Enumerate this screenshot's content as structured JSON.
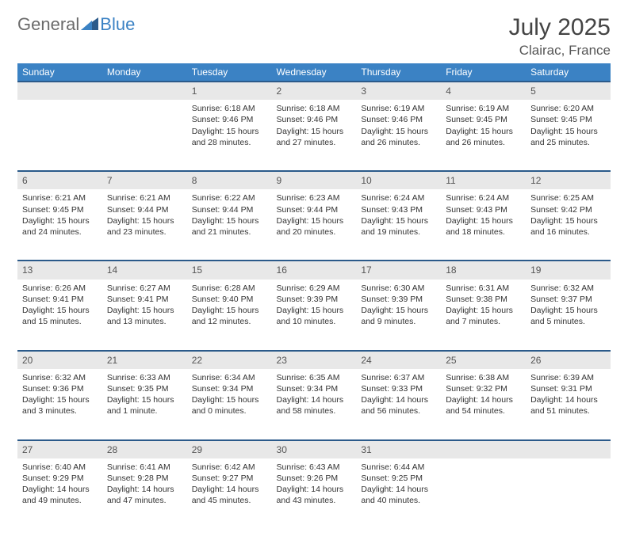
{
  "brand": {
    "general": "General",
    "blue": "Blue"
  },
  "title": "July 2025",
  "location": "Clairac, France",
  "colors": {
    "header_bg": "#3b82c4",
    "row_border": "#2b5a8a",
    "daynum_bg": "#e8e8e8",
    "text": "#333333",
    "muted": "#6b6b6b"
  },
  "weekdays": [
    "Sunday",
    "Monday",
    "Tuesday",
    "Wednesday",
    "Thursday",
    "Friday",
    "Saturday"
  ],
  "weeks": [
    [
      null,
      null,
      {
        "d": "1",
        "sr": "6:18 AM",
        "ss": "9:46 PM",
        "dl": "15 hours and 28 minutes."
      },
      {
        "d": "2",
        "sr": "6:18 AM",
        "ss": "9:46 PM",
        "dl": "15 hours and 27 minutes."
      },
      {
        "d": "3",
        "sr": "6:19 AM",
        "ss": "9:46 PM",
        "dl": "15 hours and 26 minutes."
      },
      {
        "d": "4",
        "sr": "6:19 AM",
        "ss": "9:45 PM",
        "dl": "15 hours and 26 minutes."
      },
      {
        "d": "5",
        "sr": "6:20 AM",
        "ss": "9:45 PM",
        "dl": "15 hours and 25 minutes."
      }
    ],
    [
      {
        "d": "6",
        "sr": "6:21 AM",
        "ss": "9:45 PM",
        "dl": "15 hours and 24 minutes."
      },
      {
        "d": "7",
        "sr": "6:21 AM",
        "ss": "9:44 PM",
        "dl": "15 hours and 23 minutes."
      },
      {
        "d": "8",
        "sr": "6:22 AM",
        "ss": "9:44 PM",
        "dl": "15 hours and 21 minutes."
      },
      {
        "d": "9",
        "sr": "6:23 AM",
        "ss": "9:44 PM",
        "dl": "15 hours and 20 minutes."
      },
      {
        "d": "10",
        "sr": "6:24 AM",
        "ss": "9:43 PM",
        "dl": "15 hours and 19 minutes."
      },
      {
        "d": "11",
        "sr": "6:24 AM",
        "ss": "9:43 PM",
        "dl": "15 hours and 18 minutes."
      },
      {
        "d": "12",
        "sr": "6:25 AM",
        "ss": "9:42 PM",
        "dl": "15 hours and 16 minutes."
      }
    ],
    [
      {
        "d": "13",
        "sr": "6:26 AM",
        "ss": "9:41 PM",
        "dl": "15 hours and 15 minutes."
      },
      {
        "d": "14",
        "sr": "6:27 AM",
        "ss": "9:41 PM",
        "dl": "15 hours and 13 minutes."
      },
      {
        "d": "15",
        "sr": "6:28 AM",
        "ss": "9:40 PM",
        "dl": "15 hours and 12 minutes."
      },
      {
        "d": "16",
        "sr": "6:29 AM",
        "ss": "9:39 PM",
        "dl": "15 hours and 10 minutes."
      },
      {
        "d": "17",
        "sr": "6:30 AM",
        "ss": "9:39 PM",
        "dl": "15 hours and 9 minutes."
      },
      {
        "d": "18",
        "sr": "6:31 AM",
        "ss": "9:38 PM",
        "dl": "15 hours and 7 minutes."
      },
      {
        "d": "19",
        "sr": "6:32 AM",
        "ss": "9:37 PM",
        "dl": "15 hours and 5 minutes."
      }
    ],
    [
      {
        "d": "20",
        "sr": "6:32 AM",
        "ss": "9:36 PM",
        "dl": "15 hours and 3 minutes."
      },
      {
        "d": "21",
        "sr": "6:33 AM",
        "ss": "9:35 PM",
        "dl": "15 hours and 1 minute."
      },
      {
        "d": "22",
        "sr": "6:34 AM",
        "ss": "9:34 PM",
        "dl": "15 hours and 0 minutes."
      },
      {
        "d": "23",
        "sr": "6:35 AM",
        "ss": "9:34 PM",
        "dl": "14 hours and 58 minutes."
      },
      {
        "d": "24",
        "sr": "6:37 AM",
        "ss": "9:33 PM",
        "dl": "14 hours and 56 minutes."
      },
      {
        "d": "25",
        "sr": "6:38 AM",
        "ss": "9:32 PM",
        "dl": "14 hours and 54 minutes."
      },
      {
        "d": "26",
        "sr": "6:39 AM",
        "ss": "9:31 PM",
        "dl": "14 hours and 51 minutes."
      }
    ],
    [
      {
        "d": "27",
        "sr": "6:40 AM",
        "ss": "9:29 PM",
        "dl": "14 hours and 49 minutes."
      },
      {
        "d": "28",
        "sr": "6:41 AM",
        "ss": "9:28 PM",
        "dl": "14 hours and 47 minutes."
      },
      {
        "d": "29",
        "sr": "6:42 AM",
        "ss": "9:27 PM",
        "dl": "14 hours and 45 minutes."
      },
      {
        "d": "30",
        "sr": "6:43 AM",
        "ss": "9:26 PM",
        "dl": "14 hours and 43 minutes."
      },
      {
        "d": "31",
        "sr": "6:44 AM",
        "ss": "9:25 PM",
        "dl": "14 hours and 40 minutes."
      },
      null,
      null
    ]
  ],
  "labels": {
    "sunrise": "Sunrise: ",
    "sunset": "Sunset: ",
    "daylight": "Daylight: "
  }
}
